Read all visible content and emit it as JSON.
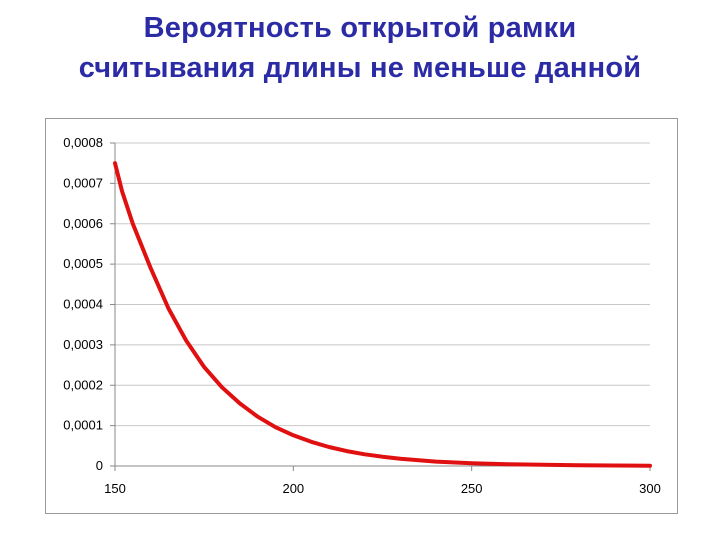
{
  "title": {
    "line1": "Вероятность открытой рамки",
    "line2": "считывания длины не меньше данной"
  },
  "chart_data": {
    "type": "line",
    "title": "Вероятность открытой рамки считывания длины не меньше данной",
    "xlabel": "",
    "ylabel": "",
    "xlim": [
      150,
      300
    ],
    "ylim": [
      0,
      0.0008
    ],
    "x_ticks": [
      "150",
      "200",
      "250",
      "300"
    ],
    "y_ticks": [
      "0",
      "0,0001",
      "0,0002",
      "0,0003",
      "0,0004",
      "0,0005",
      "0,0006",
      "0,0007",
      "0,0008"
    ],
    "grid": "horizontal",
    "series": [
      {
        "color": "#e01010",
        "x": [
          150,
          152,
          155,
          160,
          165,
          170,
          175,
          180,
          185,
          190,
          195,
          200,
          205,
          210,
          215,
          220,
          225,
          230,
          240,
          250,
          260,
          270,
          280,
          290,
          300
        ],
        "y": [
          0.00075,
          0.00068,
          0.0006,
          0.00049,
          0.00039,
          0.00031,
          0.000245,
          0.000195,
          0.000155,
          0.000122,
          9.6e-05,
          7.6e-05,
          6e-05,
          4.7e-05,
          3.7e-05,
          2.9e-05,
          2.3e-05,
          1.8e-05,
          1.1e-05,
          7e-06,
          4.5e-06,
          3e-06,
          2e-06,
          1.2e-06,
          8e-07
        ]
      }
    ]
  }
}
